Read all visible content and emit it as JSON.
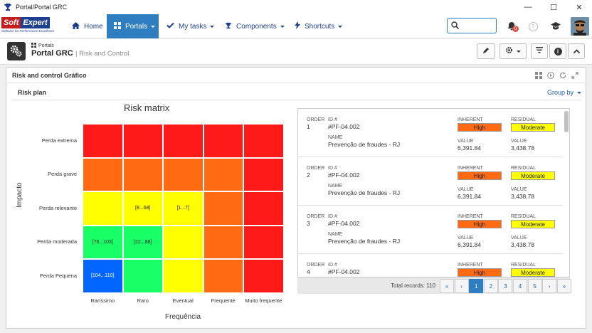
{
  "window": {
    "title": "Portal/Portal GRC",
    "controls": [
      "minimize",
      "maximize",
      "close"
    ]
  },
  "logo": {
    "part1": "Soft",
    "part2": "Expert",
    "tagline": "Software for Performance Excellence"
  },
  "nav": {
    "items": [
      {
        "label": "Home",
        "icon": "home-icon",
        "dropdown": false,
        "active": false
      },
      {
        "label": "Portals",
        "icon": "grid-icon",
        "dropdown": true,
        "active": true
      },
      {
        "label": "My tasks",
        "icon": "check-icon",
        "dropdown": true,
        "active": false
      },
      {
        "label": "Components",
        "icon": "trophy-icon",
        "dropdown": true,
        "active": false
      },
      {
        "label": "Shortcuts",
        "icon": "bolt-icon",
        "dropdown": true,
        "active": false
      }
    ],
    "notification_count": "0"
  },
  "page": {
    "breadcrumb": "Portals",
    "title": "Portal GRC",
    "subtitle": "| Risk and Control"
  },
  "panel": {
    "title": "Risk and control Gráfico",
    "subtitle": "Risk plan",
    "group_by": "Group by"
  },
  "chart_data": {
    "type": "heatmap",
    "title": "Risk matrix",
    "xlabel": "Frequência",
    "ylabel": "Impacto",
    "x_categories": [
      "Raríssimo",
      "Raro",
      "Eventual",
      "Frequente",
      "Muito frequente"
    ],
    "y_categories": [
      "Perda extrema",
      "Perda grave",
      "Perda relevante",
      "Perda moderada",
      "Perda Pequena"
    ],
    "colors": {
      "red": "#ff1a1a",
      "orange": "#ff6a13",
      "yellow": "#ffff00",
      "green": "#19ff66",
      "blue": "#0066ff"
    },
    "cells": [
      [
        "red",
        "red",
        "red",
        "red",
        "red"
      ],
      [
        "orange",
        "orange",
        "orange",
        "orange",
        "red"
      ],
      [
        "yellow",
        "yellow",
        "yellow",
        "orange",
        "red"
      ],
      [
        "green",
        "green",
        "yellow",
        "orange",
        "red"
      ],
      [
        "blue",
        "green",
        "yellow",
        "orange",
        "red"
      ]
    ],
    "cell_labels": [
      [
        "",
        "",
        "",
        "",
        ""
      ],
      [
        "",
        "",
        "",
        "",
        ""
      ],
      [
        "",
        "[8...68]",
        "[1...7]",
        "",
        ""
      ],
      [
        "[76...103]",
        "[22...88]",
        "",
        "",
        ""
      ],
      [
        "[104...110]",
        "",
        "",
        "",
        ""
      ]
    ]
  },
  "records": {
    "headers": {
      "order": "ORDER",
      "id": "ID #",
      "name": "NAME",
      "inherent": "INHERENT",
      "residual": "RESIDUAL",
      "value": "VALUE"
    },
    "items": [
      {
        "order": "1",
        "id": "#PF-04.002",
        "name": "Prevenção de fraudes - RJ",
        "inherent": "High",
        "residual": "Moderate",
        "inherent_value": "6,391.84",
        "residual_value": "3,438.78"
      },
      {
        "order": "2",
        "id": "#PF-04.002",
        "name": "Prevenção de fraudes - RJ",
        "inherent": "High",
        "residual": "Moderate",
        "inherent_value": "6,391.84",
        "residual_value": "3,438.78"
      },
      {
        "order": "3",
        "id": "#PF-04.002",
        "name": "Prevenção de fraudes - RJ",
        "inherent": "High",
        "residual": "Moderate",
        "inherent_value": "6,391.84",
        "residual_value": "3,438.78"
      },
      {
        "order": "4",
        "id": "#PF-04.002",
        "name": "",
        "inherent": "High",
        "residual": "Moderate",
        "inherent_value": "",
        "residual_value": ""
      }
    ],
    "badge_colors": {
      "High": "#ff6a13",
      "Moderate": "#ffff00"
    },
    "total_label": "Total records: 110",
    "pages": [
      "1",
      "2",
      "3",
      "4",
      "5"
    ],
    "current_page": "1",
    "nav_first": "«",
    "nav_prev": "‹",
    "nav_next": "›",
    "nav_last": "»"
  }
}
